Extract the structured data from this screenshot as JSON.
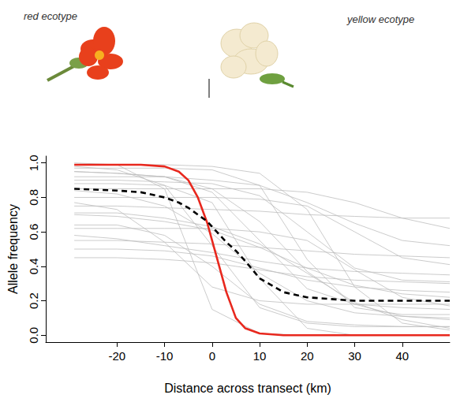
{
  "chart_data": {
    "type": "line",
    "x_label": "Distance across transect (km)",
    "y_label": "Allele frequency",
    "annotations": [
      "red ecotype",
      "yellow ecotype"
    ],
    "xlim": [
      -35,
      50
    ],
    "xticks": [
      -20,
      -10,
      0,
      10,
      20,
      30,
      40
    ],
    "ylim": [
      -0.04,
      1.04
    ],
    "yticks": [
      {
        "value": 0,
        "label": "0.0"
      },
      0.2,
      0.4,
      0.6,
      0.8,
      {
        "value": 1,
        "label": "1.0"
      }
    ],
    "grid": false,
    "series": [
      {
        "color": "#bebebe",
        "line_style": "solid",
        "x": [
          -29,
          -20,
          -10,
          0,
          10,
          20,
          30,
          40,
          50
        ],
        "values": [
          0.98,
          0.96,
          0.87,
          0.52,
          0.16,
          0.07,
          0.05,
          0.05,
          0.05
        ]
      },
      {
        "color": "#bebebe",
        "line_style": "solid",
        "x": [
          -29,
          -20,
          -10,
          0,
          10,
          20,
          30,
          40,
          50
        ],
        "values": [
          0.95,
          0.94,
          0.92,
          0.83,
          0.55,
          0.27,
          0.18,
          0.16,
          0.15
        ]
      },
      {
        "color": "#bebebe",
        "line_style": "solid",
        "x": [
          -29,
          -20,
          -10,
          0,
          10,
          20,
          30,
          40,
          50
        ],
        "values": [
          0.9,
          0.9,
          0.89,
          0.88,
          0.81,
          0.6,
          0.39,
          0.32,
          0.31
        ]
      },
      {
        "color": "#bebebe",
        "line_style": "solid",
        "x": [
          -29,
          -20,
          -10,
          0,
          10,
          20,
          30,
          40,
          50
        ],
        "values": [
          0.84,
          0.82,
          0.75,
          0.59,
          0.36,
          0.2,
          0.13,
          0.11,
          0.1
        ]
      },
      {
        "color": "#bebebe",
        "line_style": "solid",
        "x": [
          -29,
          -20,
          -10,
          0,
          10,
          20,
          30,
          40,
          50
        ],
        "values": [
          0.7,
          0.69,
          0.66,
          0.61,
          0.51,
          0.39,
          0.29,
          0.24,
          0.22
        ]
      },
      {
        "color": "#bebebe",
        "line_style": "solid",
        "x": [
          -29,
          -20,
          -10,
          0,
          10,
          20,
          30,
          40,
          50
        ],
        "values": [
          0.55,
          0.55,
          0.54,
          0.53,
          0.51,
          0.49,
          0.47,
          0.46,
          0.45
        ]
      },
      {
        "color": "#bebebe",
        "line_style": "solid",
        "x": [
          -29,
          -20,
          -10,
          0,
          10,
          20,
          30,
          40,
          50
        ],
        "values": [
          0.75,
          0.75,
          0.74,
          0.73,
          0.72,
          0.7,
          0.69,
          0.68,
          0.68
        ]
      },
      {
        "color": "#bebebe",
        "line_style": "solid",
        "x": [
          -29,
          -20,
          -10,
          0,
          10,
          20,
          30,
          40,
          50
        ],
        "values": [
          1.0,
          0.99,
          0.85,
          0.15,
          0.01,
          0,
          0,
          0,
          0
        ]
      },
      {
        "color": "#bebebe",
        "line_style": "solid",
        "x": [
          -29,
          -20,
          -10,
          0,
          10,
          20,
          30,
          40,
          50
        ],
        "values": [
          0.99,
          0.99,
          0.99,
          0.98,
          0.94,
          0.73,
          0.28,
          0.07,
          0.03
        ]
      },
      {
        "color": "#bebebe",
        "line_style": "solid",
        "x": [
          -29,
          -20,
          -10,
          0,
          10,
          20,
          30,
          40,
          50
        ],
        "values": [
          0.8,
          0.8,
          0.8,
          0.8,
          0.79,
          0.75,
          0.6,
          0.45,
          0.41
        ]
      },
      {
        "color": "#bebebe",
        "line_style": "solid",
        "x": [
          -29,
          -20,
          -10,
          0,
          10,
          20,
          30,
          40,
          50
        ],
        "values": [
          0.64,
          0.64,
          0.58,
          0.4,
          0.18,
          0.08,
          0.06,
          0.05,
          0.05
        ]
      },
      {
        "color": "#bebebe",
        "line_style": "solid",
        "x": [
          -29,
          -20,
          -10,
          0,
          10,
          20,
          30,
          40,
          50
        ],
        "values": [
          0.5,
          0.5,
          0.49,
          0.46,
          0.39,
          0.32,
          0.28,
          0.26,
          0.25
        ]
      },
      {
        "color": "#bebebe",
        "line_style": "solid",
        "x": [
          -29,
          -20,
          -10,
          0,
          10,
          20,
          30,
          40,
          50
        ],
        "values": [
          0.92,
          0.92,
          0.92,
          0.9,
          0.87,
          0.77,
          0.65,
          0.55,
          0.52
        ]
      },
      {
        "color": "#bebebe",
        "line_style": "solid",
        "x": [
          -29,
          -20,
          -10,
          0,
          10,
          20,
          30,
          40,
          50
        ],
        "values": [
          0.88,
          0.88,
          0.87,
          0.77,
          0.33,
          0.04,
          0,
          0,
          0
        ]
      },
      {
        "color": "#bebebe",
        "line_style": "solid",
        "x": [
          -29,
          -20,
          -10,
          0,
          10,
          20,
          30,
          40,
          50
        ],
        "values": [
          0.58,
          0.56,
          0.52,
          0.48,
          0.43,
          0.39,
          0.37,
          0.36,
          0.35
        ]
      },
      {
        "color": "#bebebe",
        "line_style": "solid",
        "x": [
          -29,
          -20,
          -10,
          0,
          10,
          20,
          30,
          40,
          50
        ],
        "values": [
          0.97,
          0.97,
          0.97,
          0.96,
          0.87,
          0.44,
          0.16,
          0.12,
          0.12
        ]
      },
      {
        "color": "#bebebe",
        "line_style": "solid",
        "x": [
          -29,
          -20,
          -10,
          0,
          10,
          20,
          30,
          40,
          50
        ],
        "values": [
          0.77,
          0.73,
          0.54,
          0.28,
          0.2,
          0.18,
          0.18,
          0.18,
          0.18
        ]
      },
      {
        "color": "#bebebe",
        "line_style": "solid",
        "x": [
          -29,
          -20,
          -10,
          0,
          10,
          20,
          30,
          40,
          50
        ],
        "values": [
          0.45,
          0.45,
          0.44,
          0.42,
          0.38,
          0.34,
          0.32,
          0.31,
          0.3
        ]
      },
      {
        "color": "#bebebe",
        "line_style": "solid",
        "x": [
          -29,
          -20,
          -10,
          0,
          10,
          20,
          30,
          40,
          50
        ],
        "values": [
          0.85,
          0.85,
          0.85,
          0.85,
          0.85,
          0.83,
          0.77,
          0.68,
          0.62
        ]
      },
      {
        "color": "#bebebe",
        "line_style": "solid",
        "x": [
          -29,
          -20,
          -10,
          0,
          10,
          20,
          30,
          40,
          50
        ],
        "values": [
          0.95,
          0.94,
          0.92,
          0.85,
          0.66,
          0.37,
          0.18,
          0.11,
          0.09
        ]
      },
      {
        "color": "#bebebe",
        "line_style": "solid",
        "x": [
          -29,
          -20,
          -10,
          0,
          10,
          20,
          30,
          40,
          50
        ],
        "values": [
          0.71,
          0.71,
          0.68,
          0.63,
          0.53,
          0.36,
          0.19,
          0.09,
          0.04
        ]
      },
      {
        "color": "#bebebe",
        "line_style": "solid",
        "x": [
          -29,
          -20,
          -10,
          0,
          10,
          20,
          30,
          40,
          50
        ],
        "values": [
          0.62,
          0.62,
          0.62,
          0.62,
          0.6,
          0.55,
          0.38,
          0.22,
          0.17
        ]
      },
      {
        "color": "#e8281e",
        "line_style": "solid",
        "x": [
          -29,
          -20,
          -15,
          -10,
          -7,
          -5,
          -3,
          -1,
          0,
          1,
          3,
          5,
          7,
          10,
          15,
          20,
          30,
          40,
          50
        ],
        "values": [
          0.99,
          0.99,
          0.99,
          0.98,
          0.95,
          0.9,
          0.8,
          0.65,
          0.55,
          0.45,
          0.25,
          0.1,
          0.04,
          0.01,
          0,
          0,
          0,
          0,
          0
        ]
      },
      {
        "color": "#000000",
        "line_style": "dashed",
        "x": [
          -29,
          -20,
          -15,
          -10,
          -7,
          -5,
          -3,
          -1,
          0,
          1,
          3,
          5,
          7,
          10,
          15,
          20,
          30,
          40,
          50
        ],
        "values": [
          0.85,
          0.84,
          0.83,
          0.8,
          0.77,
          0.74,
          0.7,
          0.66,
          0.63,
          0.6,
          0.54,
          0.49,
          0.43,
          0.33,
          0.25,
          0.22,
          0.2,
          0.2,
          0.2
        ]
      }
    ]
  }
}
